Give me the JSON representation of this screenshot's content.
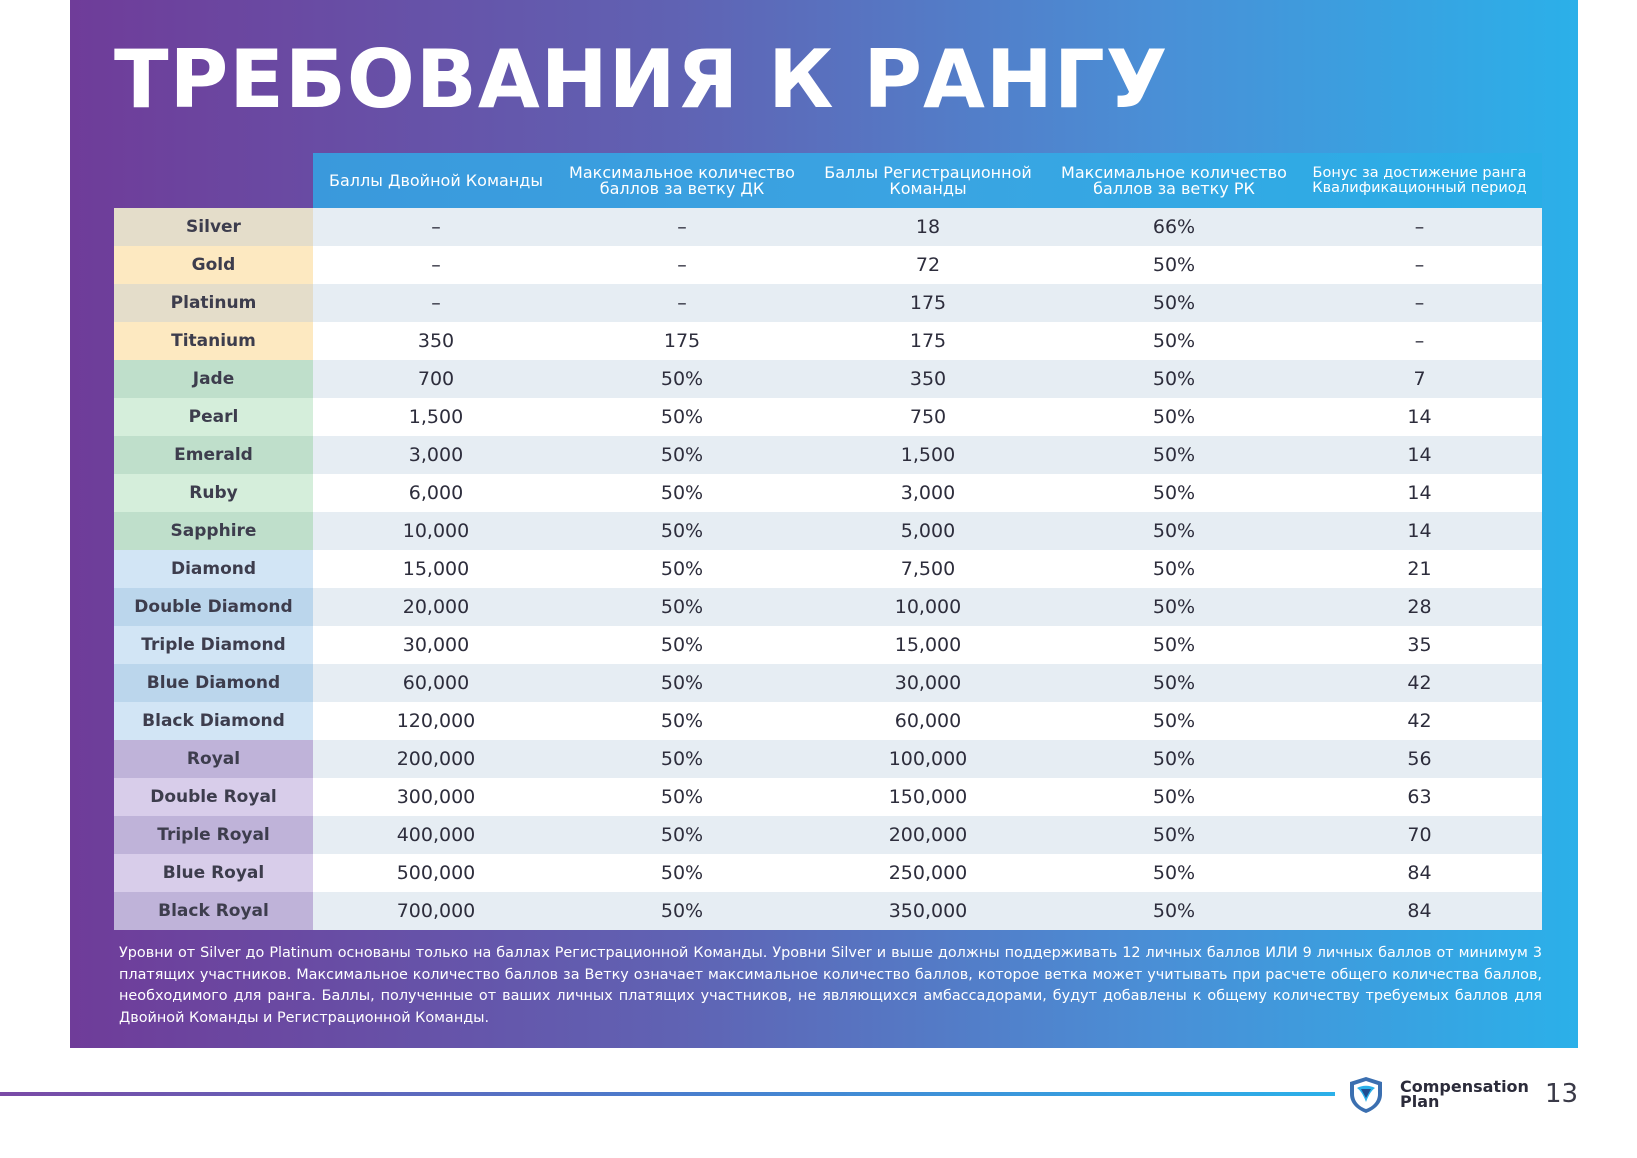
{
  "title": "ТРЕБОВАНИЯ К РАНГУ",
  "columns": [
    "Баллы Двойной Команды",
    "Максимальное количество баллов за ветку ДК",
    "Баллы Регистрационной Команды",
    "Максимальное количество баллов за ветку РК",
    "Бонус за достижение ранга Квалификационный период"
  ],
  "colors": {
    "silver": "#e4ddca",
    "gold": "#fde9c1",
    "jade": "#bfdfcb",
    "pearl": "#d5eedb",
    "diamond": "#d2e5f5",
    "blue_diamond": "#bbd6ec",
    "royal": "#bfb3d9",
    "double_royal": "#d8cdea"
  },
  "rows": [
    {
      "rank": "Silver",
      "color": "#e4ddca",
      "dk": "–",
      "dk_max": "–",
      "rk": "18",
      "rk_max": "66%",
      "bonus": "–"
    },
    {
      "rank": "Gold",
      "color": "#fde9c1",
      "dk": "–",
      "dk_max": "–",
      "rk": "72",
      "rk_max": "50%",
      "bonus": "–"
    },
    {
      "rank": "Platinum",
      "color": "#e4ddca",
      "dk": "–",
      "dk_max": "–",
      "rk": "175",
      "rk_max": "50%",
      "bonus": "–"
    },
    {
      "rank": "Titanium",
      "color": "#fde9c1",
      "dk": "350",
      "dk_max": "175",
      "rk": "175",
      "rk_max": "50%",
      "bonus": "–"
    },
    {
      "rank": "Jade",
      "color": "#bfdfcb",
      "dk": "700",
      "dk_max": "50%",
      "rk": "350",
      "rk_max": "50%",
      "bonus": "7"
    },
    {
      "rank": "Pearl",
      "color": "#d5eedb",
      "dk": "1,500",
      "dk_max": "50%",
      "rk": "750",
      "rk_max": "50%",
      "bonus": "14"
    },
    {
      "rank": "Emerald",
      "color": "#bfdfcb",
      "dk": "3,000",
      "dk_max": "50%",
      "rk": "1,500",
      "rk_max": "50%",
      "bonus": "14"
    },
    {
      "rank": "Ruby",
      "color": "#d5eedb",
      "dk": "6,000",
      "dk_max": "50%",
      "rk": "3,000",
      "rk_max": "50%",
      "bonus": "14"
    },
    {
      "rank": "Sapphire",
      "color": "#bfdfcb",
      "dk": "10,000",
      "dk_max": "50%",
      "rk": "5,000",
      "rk_max": "50%",
      "bonus": "14"
    },
    {
      "rank": "Diamond",
      "color": "#d2e5f5",
      "dk": "15,000",
      "dk_max": "50%",
      "rk": "7,500",
      "rk_max": "50%",
      "bonus": "21"
    },
    {
      "rank": "Double Diamond",
      "color": "#bbd6ec",
      "dk": "20,000",
      "dk_max": "50%",
      "rk": "10,000",
      "rk_max": "50%",
      "bonus": "28"
    },
    {
      "rank": "Triple Diamond",
      "color": "#d2e5f5",
      "dk": "30,000",
      "dk_max": "50%",
      "rk": "15,000",
      "rk_max": "50%",
      "bonus": "35"
    },
    {
      "rank": "Blue Diamond",
      "color": "#bbd6ec",
      "dk": "60,000",
      "dk_max": "50%",
      "rk": "30,000",
      "rk_max": "50%",
      "bonus": "42"
    },
    {
      "rank": "Black Diamond",
      "color": "#d2e5f5",
      "dk": "120,000",
      "dk_max": "50%",
      "rk": "60,000",
      "rk_max": "50%",
      "bonus": "42"
    },
    {
      "rank": "Royal",
      "color": "#bfb3d9",
      "dk": "200,000",
      "dk_max": "50%",
      "rk": "100,000",
      "rk_max": "50%",
      "bonus": "56"
    },
    {
      "rank": "Double Royal",
      "color": "#d8cdea",
      "dk": "300,000",
      "dk_max": "50%",
      "rk": "150,000",
      "rk_max": "50%",
      "bonus": "63"
    },
    {
      "rank": "Triple Royal",
      "color": "#bfb3d9",
      "dk": "400,000",
      "dk_max": "50%",
      "rk": "200,000",
      "rk_max": "50%",
      "bonus": "70"
    },
    {
      "rank": "Blue Royal",
      "color": "#d8cdea",
      "dk": "500,000",
      "dk_max": "50%",
      "rk": "250,000",
      "rk_max": "50%",
      "bonus": "84"
    },
    {
      "rank": "Black Royal",
      "color": "#bfb3d9",
      "dk": "700,000",
      "dk_max": "50%",
      "rk": "350,000",
      "rk_max": "50%",
      "bonus": "84"
    }
  ],
  "note": "Уровни от Silver до Platinum основаны только на баллах Регистрационной Команды. Уровни Silver и выше должны поддерживать 12 личных баллов ИЛИ 9 личных баллов от минимум 3 платящих участников. Максимальное количество баллов за Ветку означает максимальное количество баллов, которое ветка может учитывать при расчете общего количества баллов, необходимого для ранга. Баллы, полученные от ваших личных платящих участников, не являющихся амбассадорами, будут добавлены к общему количеству требуемых баллов для Двойной Команды и Регистрационной Команды.",
  "footer": {
    "logo_icon": "shield-logo-icon",
    "logo_line1": "Compensation",
    "logo_line2": "Plan",
    "page_number": "13"
  }
}
